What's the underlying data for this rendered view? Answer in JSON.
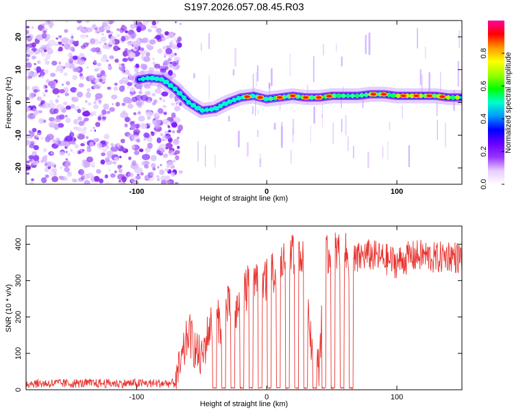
{
  "title": "S197.2026.057.08.45.R03",
  "chart_data": [
    {
      "type": "heatmap",
      "name": "spectrogram",
      "xlabel": "Height of straight line (km)",
      "ylabel": "Frequency (Hz)",
      "xlim": [
        -185,
        150
      ],
      "ylim": [
        -25,
        25
      ],
      "xticks": [
        -100,
        0,
        100
      ],
      "xtick_labels": [
        "-100",
        "0",
        "100"
      ],
      "yticks": [
        -20,
        -10,
        0,
        10,
        20
      ],
      "ytick_labels": [
        "-20",
        "-10",
        "0",
        "10",
        "20"
      ],
      "noise_region_x": [
        -185,
        -70
      ],
      "ridge": {
        "x": [
          -98,
          -90,
          -80,
          -70,
          -60,
          -50,
          -40,
          -30,
          -20,
          -10,
          0,
          10,
          20,
          30,
          40,
          50,
          60,
          70,
          80,
          90,
          100,
          110,
          120,
          130,
          140,
          150
        ],
        "y": [
          7,
          7.5,
          7,
          4,
          0,
          -2.5,
          -2,
          0,
          1.5,
          2,
          1,
          1.5,
          2,
          1.5,
          1.5,
          2,
          2,
          2,
          2.5,
          2.5,
          2,
          2,
          2,
          2,
          1.5,
          1.5
        ]
      },
      "colorbar": {
        "label": "Normalized spectral amplitude",
        "range": [
          0,
          1
        ],
        "ticks": [
          0,
          0.2,
          0.4,
          0.6,
          0.8
        ],
        "tick_labels": [
          "0.0",
          "0.2",
          "0.4",
          "0.6",
          "0.8"
        ],
        "colors": [
          "#ffffff",
          "#e6ccff",
          "#9933ff",
          "#6600ff",
          "#0000ff",
          "#0099ff",
          "#00ffcc",
          "#00ff00",
          "#99ff00",
          "#ffff00",
          "#ff9900",
          "#ff0000",
          "#ff0099"
        ]
      }
    },
    {
      "type": "line",
      "name": "snr",
      "xlabel": "Height of straight line (km)",
      "ylabel": "SNR (10 * v/v)",
      "xlim": [
        -185,
        150
      ],
      "ylim": [
        0,
        450
      ],
      "xticks": [
        -100,
        0,
        100
      ],
      "xtick_labels": [
        "-100",
        "0",
        "100"
      ],
      "yticks": [
        0,
        100,
        200,
        300,
        400
      ],
      "ytick_labels": [
        "0",
        "100",
        "200",
        "300",
        "400"
      ],
      "color": "#e8322e",
      "series": [
        {
          "name": "SNR",
          "x": [
            -185,
            -150,
            -100,
            -80,
            -70,
            -65,
            -60,
            -55,
            -50,
            -45,
            -40,
            -35,
            -30,
            -25,
            -20,
            -15,
            -10,
            -5,
            0,
            5,
            10,
            15,
            20,
            25,
            30,
            35,
            40,
            45,
            50,
            55,
            60,
            65,
            70,
            75,
            80,
            90,
            100,
            110,
            120,
            130,
            140,
            150
          ],
          "y": [
            15,
            15,
            15,
            18,
            20,
            80,
            160,
            110,
            80,
            160,
            200,
            180,
            230,
            200,
            250,
            280,
            320,
            290,
            300,
            320,
            340,
            360,
            370,
            380,
            330,
            100,
            60,
            360,
            380,
            380,
            380,
            330,
            360,
            370,
            370,
            360,
            350,
            365,
            370,
            360,
            370,
            360
          ]
        }
      ],
      "dropout_x": [
        -40,
        -33,
        -26,
        -19,
        -12,
        -5,
        2,
        9,
        16,
        23,
        30,
        37,
        44,
        51,
        58,
        65
      ]
    }
  ]
}
